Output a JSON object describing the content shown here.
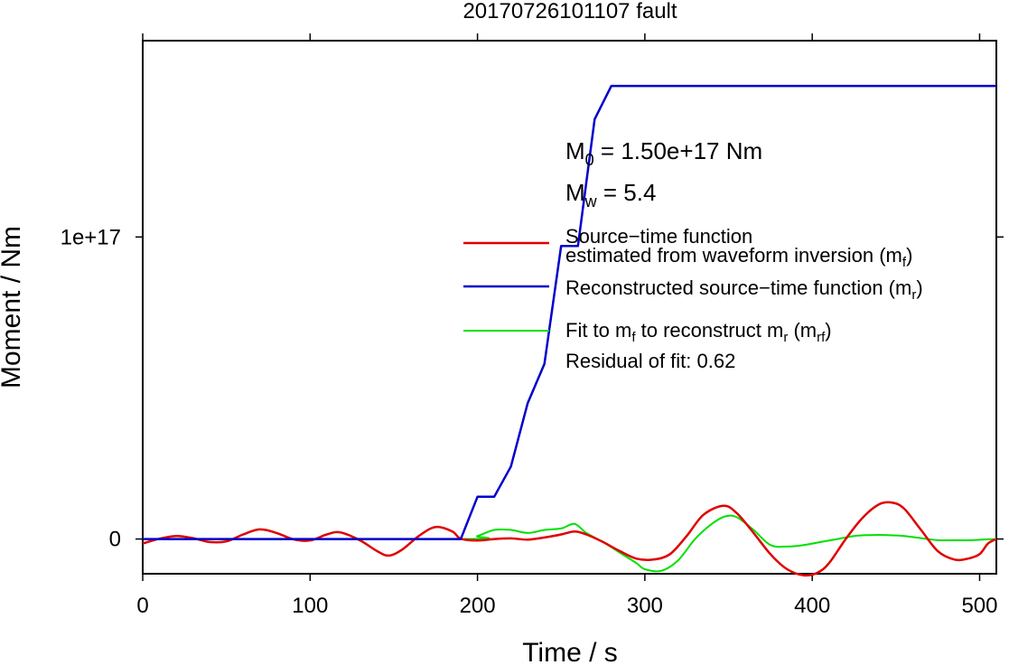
{
  "chart_data": {
    "type": "line",
    "title": "20170726101107 fault",
    "xlabel": "Time / s",
    "ylabel": "Moment / Nm",
    "xlim": [
      0,
      510
    ],
    "ylim": [
      -1.15e+16,
      1.65e+17
    ],
    "x_ticks": [
      0,
      100,
      200,
      300,
      400,
      500
    ],
    "x_tick_labels": [
      "0",
      "100",
      "200",
      "300",
      "400",
      "500"
    ],
    "y_ticks": [
      0,
      1e+17
    ],
    "y_tick_labels": [
      "0",
      "1e+17"
    ],
    "grid": false,
    "legend_position": "right",
    "annotations": {
      "m0_text": "M",
      "m0_sub": "0",
      "m0_value": " = 1.50e+17 Nm",
      "mw_text": "M",
      "mw_sub": "w",
      "mw_value": " = 5.4",
      "residual": "Residual of fit: 0.62"
    },
    "series": [
      {
        "key": "red",
        "color": "#e00000",
        "legend_line1": "Source−time function",
        "legend_line2_pre": "estimated from waveform inversion (m",
        "legend_line2_sub": "f",
        "legend_line2_post": ")",
        "x": [
          0,
          10,
          20,
          30,
          40,
          50,
          60,
          70,
          80,
          90,
          100,
          110,
          118,
          130,
          140,
          147,
          155,
          165,
          175,
          185,
          190,
          200,
          210,
          220,
          230,
          240,
          250,
          258,
          265,
          275,
          285,
          295,
          305,
          315,
          325,
          335,
          347,
          355,
          365,
          375,
          385,
          395,
          403,
          410,
          420,
          430,
          440,
          448,
          455,
          465,
          475,
          485,
          493,
          500,
          505,
          510
        ],
        "y": [
          -1500000000000000.0,
          100000000000000.0,
          1000000000000000.0,
          300000000000000.0,
          -1000000000000000.0,
          -800000000000000.0,
          1500000000000000.0,
          3200000000000000.0,
          2000000000000000.0,
          -100000000000000.0,
          -500000000000000.0,
          1500000000000000.0,
          2200000000000000.0,
          -500000000000000.0,
          -4000000000000000.0,
          -5500000000000000.0,
          -3500000000000000.0,
          1000000000000000.0,
          4000000000000000.0,
          2500000000000000.0,
          100000000000000.0,
          -500000000000000.0,
          0,
          200000000000000.0,
          -200000000000000.0,
          500000000000000.0,
          1500000000000000.0,
          2500000000000000.0,
          1500000000000000.0,
          -1000000000000000.0,
          -4000000000000000.0,
          -6500000000000000.0,
          -6800000000000000.0,
          -5000000000000000.0,
          1000000000000000.0,
          8000000000000000.0,
          1.1e+16,
          8500000000000000.0,
          2000000000000000.0,
          -5000000000000000.0,
          -1e+16,
          -1.2e+16,
          -1.12e+16,
          -8000000000000000.0,
          0,
          7000000000000000.0,
          1.15e+16,
          1.2e+16,
          1e+16,
          3000000000000000.0,
          -4000000000000000.0,
          -6800000000000000.0,
          -6500000000000000.0,
          -5000000000000000.0,
          -1500000000000000.0,
          0
        ]
      },
      {
        "key": "blue",
        "color": "#0000cc",
        "legend_pre": "Reconstructed source−time function (m",
        "legend_sub": "r",
        "legend_post": ")",
        "x": [
          0,
          190,
          200,
          210,
          220,
          230,
          240,
          250,
          260,
          270,
          280,
          510
        ],
        "y": [
          0,
          0,
          1.4e+16,
          1.4e+16,
          2.4e+16,
          4.5e+16,
          5.8e+16,
          9.7e+16,
          9.7e+16,
          1.39e+17,
          1.5e+17,
          1.5e+17
        ]
      },
      {
        "key": "green",
        "color": "#00e000",
        "legend_pre": "Fit to m",
        "legend_sub1": "f",
        "legend_mid": " to reconstruct m",
        "legend_sub2": "r",
        "legend_mid2": " (m",
        "legend_sub3": "rf",
        "legend_post": ")",
        "x": [
          0,
          190,
          200,
          210,
          220,
          230,
          240,
          250,
          258,
          265,
          275,
          285,
          295,
          300,
          310,
          320,
          330,
          340,
          348,
          355,
          365,
          375,
          385,
          395,
          405,
          415,
          425,
          435,
          445,
          455,
          465,
          475,
          485,
          495,
          505,
          510
        ],
        "y": [
          0,
          0,
          1000000000000000.0,
          3000000000000000.0,
          3000000000000000.0,
          2000000000000000.0,
          3000000000000000.0,
          3500000000000000.0,
          5000000000000000.0,
          2000000000000000.0,
          -1000000000000000.0,
          -4500000000000000.0,
          -8000000000000000.0,
          -1e+16,
          -1.05e+16,
          -7000000000000000.0,
          0,
          5000000000000000.0,
          7500000000000000.0,
          7200000000000000.0,
          3000000000000000.0,
          -2000000000000000.0,
          -2500000000000000.0,
          -2000000000000000.0,
          -1000000000000000.0,
          0,
          1000000000000000.0,
          1300000000000000.0,
          1300000000000000.0,
          1000000000000000.0,
          300000000000000.0,
          -400000000000000.0,
          -400000000000000.0,
          -400000000000000.0,
          -100000000000000.0,
          0
        ]
      }
    ]
  }
}
